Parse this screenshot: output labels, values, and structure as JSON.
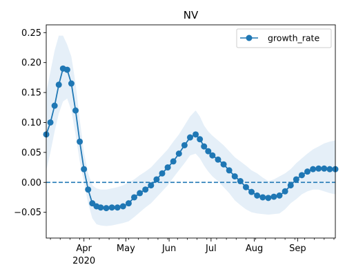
{
  "chart_data": {
    "type": "line",
    "title": "NV",
    "xlabel": "",
    "ylabel": "",
    "xlim": [
      "2020-03-05",
      "2020-09-28"
    ],
    "ylim": [
      -0.093,
      0.263
    ],
    "x_tick_labels": [
      "Apr",
      "May",
      "Jun",
      "Jul",
      "Aug",
      "Sep"
    ],
    "x_tick_dates": [
      "2020-04-01",
      "2020-05-01",
      "2020-06-01",
      "2020-07-01",
      "2020-08-01",
      "2020-09-01"
    ],
    "x_year_label": "2020",
    "y_tick_values": [
      -0.05,
      0.0,
      0.05,
      0.1,
      0.15,
      0.2,
      0.25
    ],
    "y_tick_labels": [
      "−0.05",
      "0.00",
      "0.05",
      "0.10",
      "0.15",
      "0.20",
      "0.25"
    ],
    "reference_line": {
      "y": 0.0,
      "style": "dashed"
    },
    "legend": {
      "entries": [
        "growth_rate"
      ],
      "placement": "top-right"
    },
    "grid": false,
    "colors": {
      "series": "#1f77b4",
      "band": "#c6dbef"
    },
    "series": [
      {
        "name": "growth_rate",
        "marker": "circle",
        "dates": [
          "2020-03-05",
          "2020-03-08",
          "2020-03-11",
          "2020-03-14",
          "2020-03-17",
          "2020-03-20",
          "2020-03-23",
          "2020-03-26",
          "2020-03-29",
          "2020-04-01",
          "2020-04-04",
          "2020-04-07",
          "2020-04-10",
          "2020-04-13",
          "2020-04-17",
          "2020-04-21",
          "2020-04-25",
          "2020-04-29",
          "2020-05-03",
          "2020-05-07",
          "2020-05-11",
          "2020-05-15",
          "2020-05-19",
          "2020-05-23",
          "2020-05-27",
          "2020-05-31",
          "2020-06-04",
          "2020-06-08",
          "2020-06-12",
          "2020-06-16",
          "2020-06-20",
          "2020-06-23",
          "2020-06-26",
          "2020-06-29",
          "2020-07-02",
          "2020-07-06",
          "2020-07-10",
          "2020-07-14",
          "2020-07-18",
          "2020-07-22",
          "2020-07-26",
          "2020-07-30",
          "2020-08-03",
          "2020-08-07",
          "2020-08-11",
          "2020-08-15",
          "2020-08-19",
          "2020-08-23",
          "2020-08-27",
          "2020-08-31",
          "2020-09-04",
          "2020-09-08",
          "2020-09-12",
          "2020-09-16",
          "2020-09-20",
          "2020-09-24",
          "2020-09-28"
        ],
        "values": [
          0.08,
          0.1,
          0.128,
          0.163,
          0.19,
          0.188,
          0.165,
          0.12,
          0.068,
          0.022,
          -0.012,
          -0.035,
          -0.04,
          -0.042,
          -0.043,
          -0.042,
          -0.042,
          -0.04,
          -0.035,
          -0.025,
          -0.018,
          -0.012,
          -0.005,
          0.005,
          0.015,
          0.025,
          0.035,
          0.048,
          0.062,
          0.075,
          0.08,
          0.072,
          0.06,
          0.052,
          0.045,
          0.038,
          0.03,
          0.02,
          0.01,
          0.002,
          -0.008,
          -0.016,
          -0.022,
          -0.025,
          -0.026,
          -0.024,
          -0.022,
          -0.015,
          -0.005,
          0.005,
          0.012,
          0.018,
          0.022,
          0.023,
          0.023,
          0.022,
          0.022
        ],
        "band_lower": [
          0.02,
          0.05,
          0.085,
          0.115,
          0.135,
          0.14,
          0.12,
          0.08,
          0.035,
          0.0,
          -0.035,
          -0.06,
          -0.07,
          -0.072,
          -0.073,
          -0.072,
          -0.07,
          -0.068,
          -0.065,
          -0.058,
          -0.05,
          -0.042,
          -0.035,
          -0.025,
          -0.015,
          -0.005,
          0.008,
          0.02,
          0.032,
          0.045,
          0.048,
          0.04,
          0.028,
          0.018,
          0.01,
          0.002,
          -0.008,
          -0.018,
          -0.03,
          -0.038,
          -0.045,
          -0.05,
          -0.052,
          -0.053,
          -0.054,
          -0.053,
          -0.052,
          -0.045,
          -0.035,
          -0.028,
          -0.02,
          -0.015,
          -0.012,
          -0.012,
          -0.015,
          -0.018,
          -0.02
        ],
        "band_upper": [
          0.15,
          0.185,
          0.22,
          0.245,
          0.245,
          0.23,
          0.21,
          0.165,
          0.105,
          0.05,
          0.015,
          -0.005,
          -0.01,
          -0.012,
          -0.012,
          -0.01,
          -0.008,
          -0.005,
          0.0,
          0.005,
          0.012,
          0.018,
          0.025,
          0.035,
          0.045,
          0.055,
          0.068,
          0.08,
          0.095,
          0.11,
          0.12,
          0.11,
          0.095,
          0.085,
          0.078,
          0.07,
          0.062,
          0.052,
          0.042,
          0.035,
          0.028,
          0.02,
          0.015,
          0.008,
          0.002,
          0.005,
          0.01,
          0.015,
          0.022,
          0.032,
          0.04,
          0.048,
          0.055,
          0.06,
          0.065,
          0.068,
          0.07
        ]
      }
    ]
  }
}
